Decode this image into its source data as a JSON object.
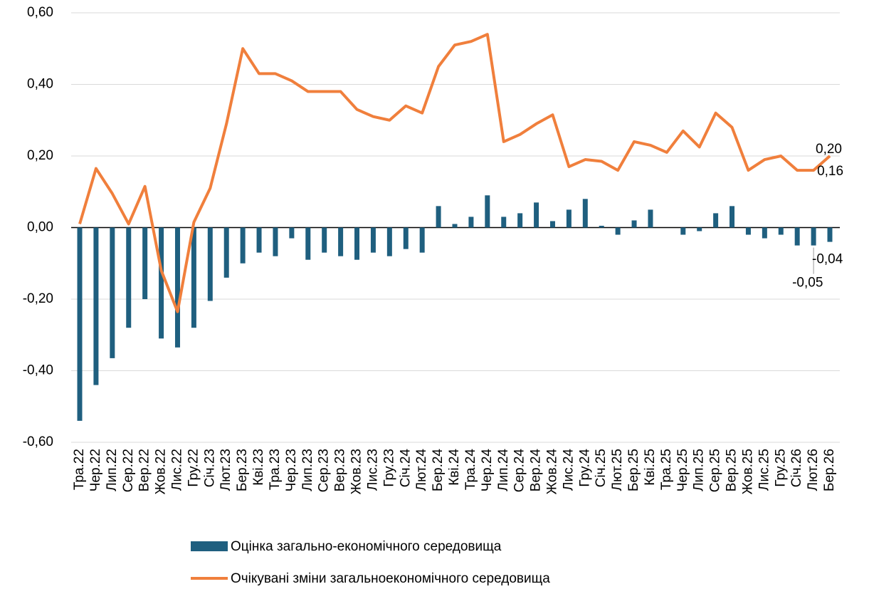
{
  "chart_data": {
    "type": "bar_line",
    "categories": [
      "Тра.22",
      "Чер.22",
      "Лип.22",
      "Сер.22",
      "Вер.22",
      "Жов.22",
      "Лис.22",
      "Гру.22",
      "Січ.23",
      "Лют.23",
      "Бер.23",
      "Кві.23",
      "Тра.23",
      "Чер.23",
      "Лип.23",
      "Сер.23",
      "Вер.23",
      "Жов.23",
      "Лис.23",
      "Гру.23",
      "Січ.24",
      "Лют.24",
      "Бер.24",
      "Кві.24",
      "Тра.24",
      "Чер.24",
      "Лип.24",
      "Сер.24",
      "Вер.24",
      "Жов.24",
      "Лис.24",
      "Гру.24",
      "Січ.25",
      "Лют.25",
      "Бер.25",
      "Кві.25",
      "Тра.25",
      "Чер.25",
      "Лип.25",
      "Сер.25",
      "Вер.25",
      "Жов.25",
      "Лис.25",
      "Гру.25",
      "Січ.26",
      "Лют.26",
      "Бер.26"
    ],
    "series": [
      {
        "name": "Оцінка загально-економічного середовища",
        "type": "bar",
        "color": "#1f5f7f",
        "values": [
          -0.54,
          -0.44,
          -0.365,
          -0.28,
          -0.2,
          -0.31,
          -0.335,
          -0.28,
          -0.205,
          -0.14,
          -0.1,
          -0.07,
          -0.08,
          -0.03,
          -0.09,
          -0.07,
          -0.08,
          -0.09,
          -0.07,
          -0.08,
          -0.06,
          -0.07,
          0.06,
          0.01,
          0.03,
          0.09,
          0.03,
          0.04,
          0.07,
          0.018,
          0.05,
          0.08,
          0.005,
          -0.02,
          0.02,
          0.05,
          0,
          -0.02,
          -0.01,
          0.04,
          0.06,
          -0.02,
          -0.03,
          -0.02,
          -0.05,
          -0.05,
          -0.04
        ],
        "value_labels": [
          null,
          null,
          null,
          null,
          null,
          null,
          null,
          null,
          null,
          null,
          null,
          null,
          null,
          null,
          null,
          null,
          null,
          null,
          null,
          null,
          null,
          null,
          null,
          null,
          null,
          null,
          null,
          null,
          null,
          null,
          null,
          null,
          null,
          null,
          null,
          null,
          null,
          null,
          null,
          null,
          null,
          null,
          null,
          null,
          null,
          "-0,05",
          "-0,04"
        ]
      },
      {
        "name": "Очікувані зміни загальноекономічного середовища",
        "type": "line",
        "color": "#f07f3c",
        "values": [
          0.01,
          0.165,
          0.095,
          0.01,
          0.115,
          -0.12,
          -0.235,
          0.015,
          0.11,
          0.29,
          0.5,
          0.43,
          0.43,
          0.41,
          0.38,
          0.38,
          0.38,
          0.33,
          0.31,
          0.3,
          0.34,
          0.32,
          0.45,
          0.51,
          0.52,
          0.54,
          0.24,
          0.26,
          0.29,
          0.315,
          0.17,
          0.19,
          0.185,
          0.16,
          0.24,
          0.23,
          0.21,
          0.27,
          0.225,
          0.32,
          0.28,
          0.16,
          0.19,
          0.2,
          0.16,
          0.16,
          0.2
        ],
        "value_labels": [
          null,
          null,
          null,
          null,
          null,
          null,
          null,
          null,
          null,
          null,
          null,
          null,
          null,
          null,
          null,
          null,
          null,
          null,
          null,
          null,
          null,
          null,
          null,
          null,
          null,
          null,
          null,
          null,
          null,
          null,
          null,
          null,
          null,
          null,
          null,
          null,
          null,
          null,
          null,
          null,
          null,
          null,
          null,
          null,
          null,
          "0,16",
          "0,20"
        ]
      }
    ],
    "ylim": [
      -0.6,
      0.6
    ],
    "yticks": [
      {
        "value": -0.6,
        "label": "-0,60"
      },
      {
        "value": -0.4,
        "label": "-0,40"
      },
      {
        "value": -0.2,
        "label": "-0,20"
      },
      {
        "value": 0,
        "label": "0,00"
      },
      {
        "value": 0.2,
        "label": "0,20"
      },
      {
        "value": 0.4,
        "label": "0,40"
      },
      {
        "value": 0.6,
        "label": "0,60"
      }
    ],
    "grid": true,
    "legend": "bottom"
  }
}
